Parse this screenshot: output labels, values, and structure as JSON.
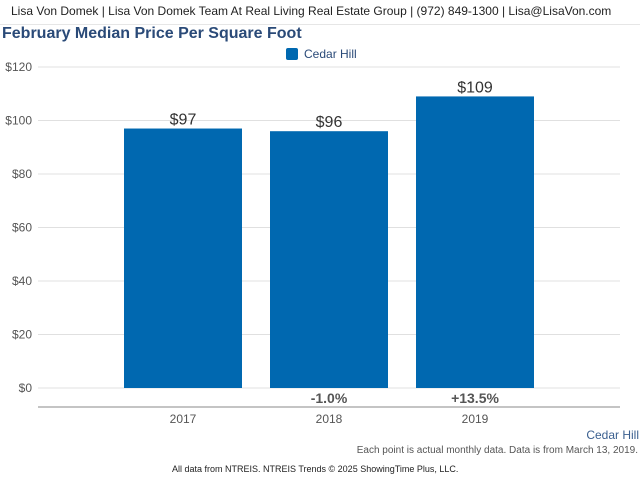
{
  "header": {
    "contact": "Lisa Von Domek | Lisa Von Domek Team At Real Living Real Estate Group | (972) 849-1300 | Lisa@LisaVon.com"
  },
  "colors": {
    "bar": "#0068b0",
    "title": "#2a4a78",
    "grid": "#e0e0e0"
  },
  "chart_data": {
    "type": "bar",
    "title": "February Median Price Per Square Foot",
    "categories": [
      "2017",
      "2018",
      "2019"
    ],
    "series": [
      {
        "name": "Cedar Hill",
        "values": [
          97,
          96,
          109
        ]
      }
    ],
    "value_labels": [
      "$97",
      "$96",
      "$109"
    ],
    "change_labels": [
      "",
      "-1.0%",
      "+13.5%"
    ],
    "y_ticks": [
      "$0",
      "$20",
      "$40",
      "$60",
      "$80",
      "$100",
      "$120"
    ],
    "ylim": [
      0,
      120
    ],
    "grid": true,
    "legend": "top-center"
  },
  "footer": {
    "region": "Cedar Hill",
    "note": "Each point is actual monthly data. Data is from March 13, 2019.",
    "credit": "All data from NTREIS. NTREIS Trends © 2025 ShowingTime Plus, LLC."
  }
}
